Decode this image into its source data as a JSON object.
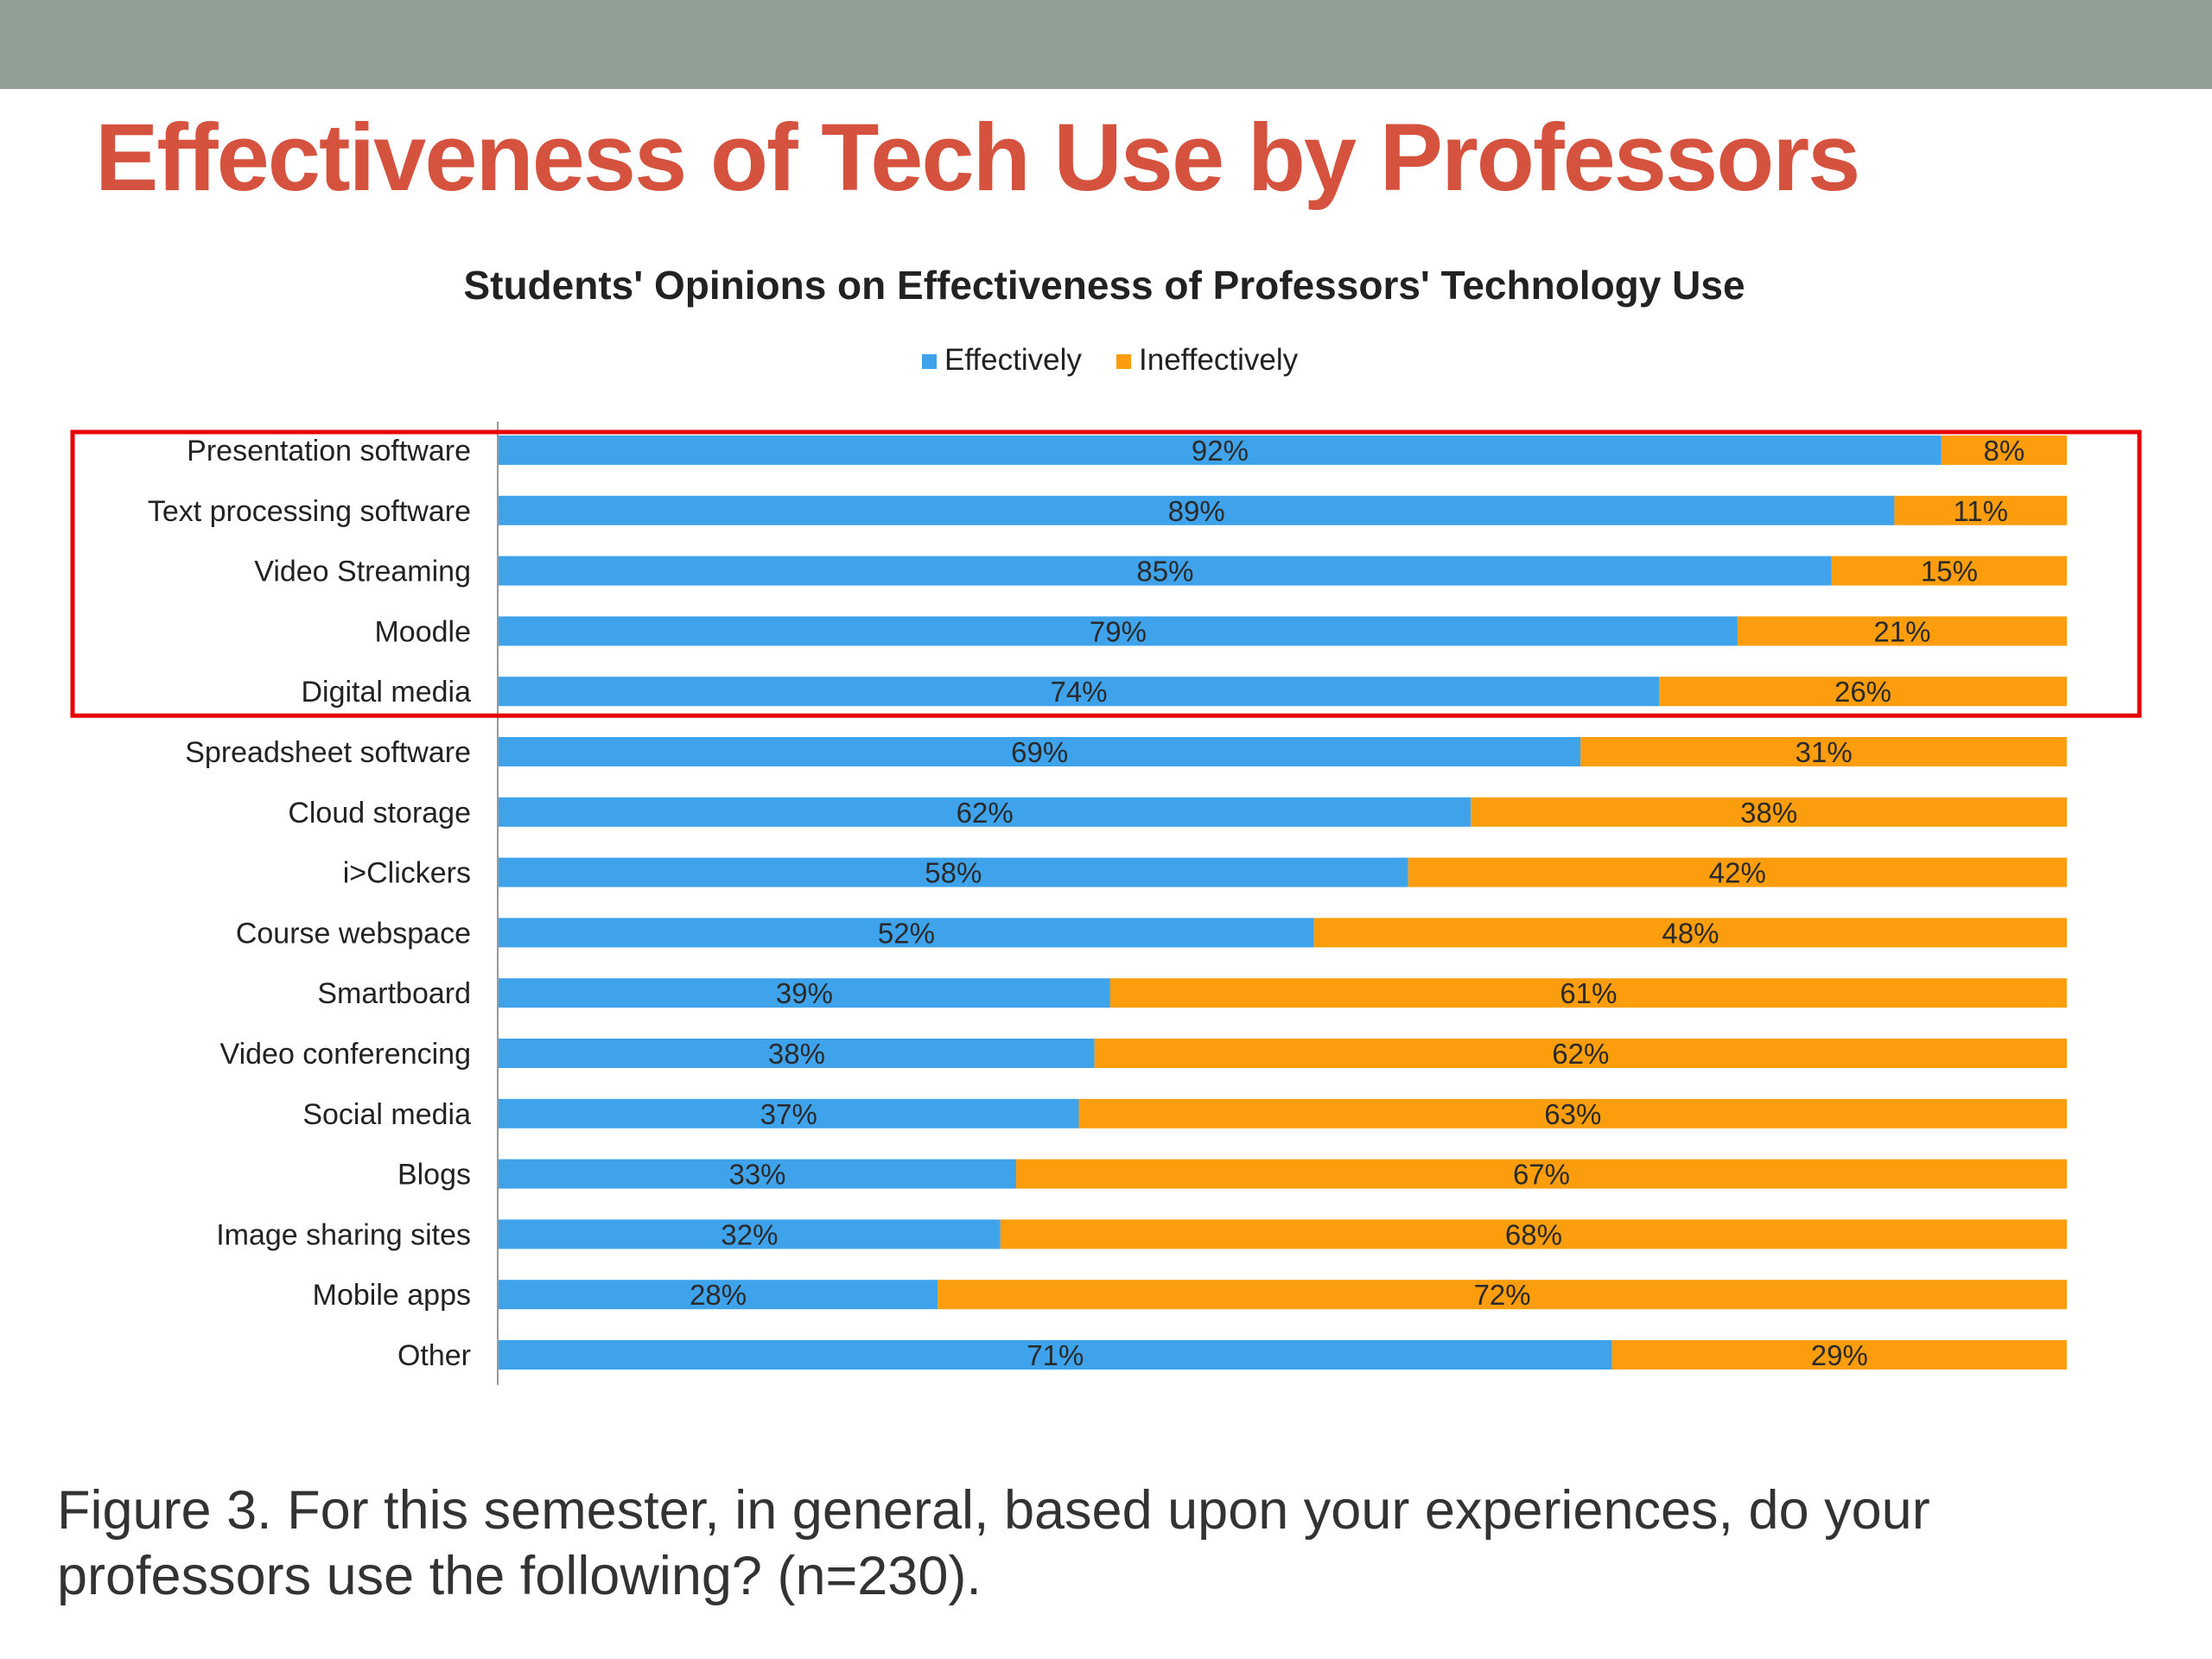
{
  "slide": {
    "title": "Effectiveness of Tech Use by Professors",
    "caption": "Figure 3. For this semester, in general, based upon your experiences, do your professors use the following? (n=230)."
  },
  "colors": {
    "top_band": "#929f97",
    "title": "#d5533e",
    "effectively": "#3fa3ec",
    "ineffectively": "#fb9d0c",
    "highlight_box": "#e60000",
    "axis": "#9a9a9a",
    "text": "#222222"
  },
  "highlight": {
    "categories": [
      "Presentation software",
      "Text processing software",
      "Video Streaming",
      "Moodle",
      "Digital media"
    ]
  },
  "chart_data": {
    "type": "bar",
    "orientation": "horizontal",
    "stacked": true,
    "percent_stacked": true,
    "title": "Students' Opinions on Effectiveness of Professors' Technology Use",
    "legend_position": "top",
    "grid": false,
    "xlim": [
      0,
      100
    ],
    "categories": [
      "Presentation software",
      "Text processing software",
      "Video Streaming",
      "Moodle",
      "Digital media",
      "Spreadsheet software",
      "Cloud storage",
      "i>Clickers",
      "Course webspace",
      "Smartboard",
      "Video conferencing",
      "Social media",
      "Blogs",
      "Image sharing sites",
      "Mobile apps",
      "Other"
    ],
    "series": [
      {
        "name": "Effectively",
        "color": "#3fa3ec",
        "values": [
          92,
          89,
          85,
          79,
          74,
          69,
          62,
          58,
          52,
          39,
          38,
          37,
          33,
          32,
          28,
          71
        ],
        "labels": [
          "92%",
          "89%",
          "85%",
          "79%",
          "74%",
          "69%",
          "62%",
          "58%",
          "52%",
          "39%",
          "38%",
          "37%",
          "33%",
          "32%",
          "28%",
          "71%"
        ]
      },
      {
        "name": "Ineffectively",
        "color": "#fb9d0c",
        "values": [
          8,
          11,
          15,
          21,
          26,
          31,
          38,
          42,
          48,
          61,
          62,
          63,
          67,
          68,
          72,
          29
        ],
        "labels": [
          "8%",
          "11%",
          "15%",
          "21%",
          "26%",
          "31%",
          "38%",
          "42%",
          "48%",
          "61%",
          "62%",
          "63%",
          "67%",
          "68%",
          "72%",
          "29%"
        ]
      }
    ]
  }
}
